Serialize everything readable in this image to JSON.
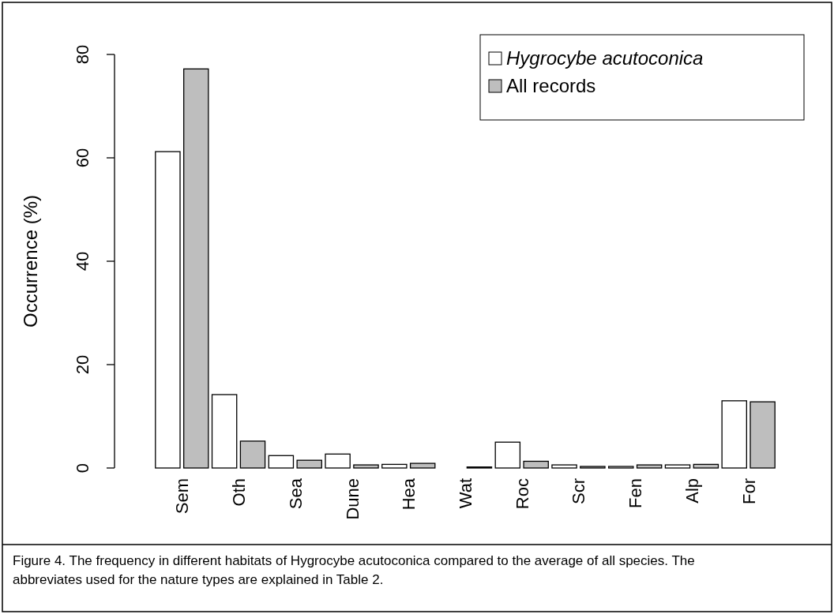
{
  "chart_data": {
    "type": "bar",
    "ylabel": "Occurrence (%)",
    "categories": [
      "Sem",
      "Oth",
      "Sea",
      "Dune",
      "Hea",
      "Wat",
      "Roc",
      "Scr",
      "Fen",
      "Alp",
      "For"
    ],
    "series": [
      {
        "name": "Hygrocybe acutoconica",
        "color": "#ffffff",
        "values": [
          61.2,
          14.2,
          2.4,
          2.7,
          0.7,
          0,
          5.0,
          0.6,
          0.3,
          0.6,
          13.0
        ]
      },
      {
        "name": "All records",
        "color": "#bebebe",
        "values": [
          77.2,
          5.2,
          1.5,
          0.6,
          0.9,
          0.2,
          1.3,
          0.3,
          0.6,
          0.7,
          12.8
        ]
      }
    ],
    "ylim": [
      0,
      80
    ],
    "yticks": [
      0,
      20,
      40,
      60,
      80
    ],
    "grid": false,
    "legend": "top right",
    "annotations": [
      "Figure 4. The frequency in different habitats of Hygrocybe acutoconica compared to the average of all species. The abbreviates used for the nature types are explained in Table 2."
    ]
  }
}
